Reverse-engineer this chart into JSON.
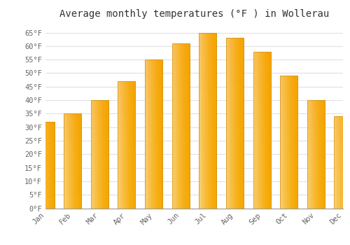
{
  "months": [
    "Jan",
    "Feb",
    "Mar",
    "Apr",
    "May",
    "Jun",
    "Jul",
    "Aug",
    "Sep",
    "Oct",
    "Nov",
    "Dec"
  ],
  "values": [
    32,
    35,
    40,
    47,
    55,
    61,
    65,
    63,
    58,
    49,
    40,
    34
  ],
  "bar_color_top": "#FFE066",
  "bar_color_bottom": "#F5A800",
  "bar_edge_color": "#D4920A",
  "title": "Average monthly temperatures (°F ) in Wollerau",
  "ylim": [
    0,
    68
  ],
  "yticks": [
    0,
    5,
    10,
    15,
    20,
    25,
    30,
    35,
    40,
    45,
    50,
    55,
    60,
    65
  ],
  "ytick_labels": [
    "0°F",
    "5°F",
    "10°F",
    "15°F",
    "20°F",
    "25°F",
    "30°F",
    "35°F",
    "40°F",
    "45°F",
    "50°F",
    "55°F",
    "60°F",
    "65°F"
  ],
  "bg_color": "#ffffff",
  "grid_color": "#e0e0e8",
  "title_fontsize": 10,
  "tick_fontsize": 7.5,
  "font_family": "monospace"
}
